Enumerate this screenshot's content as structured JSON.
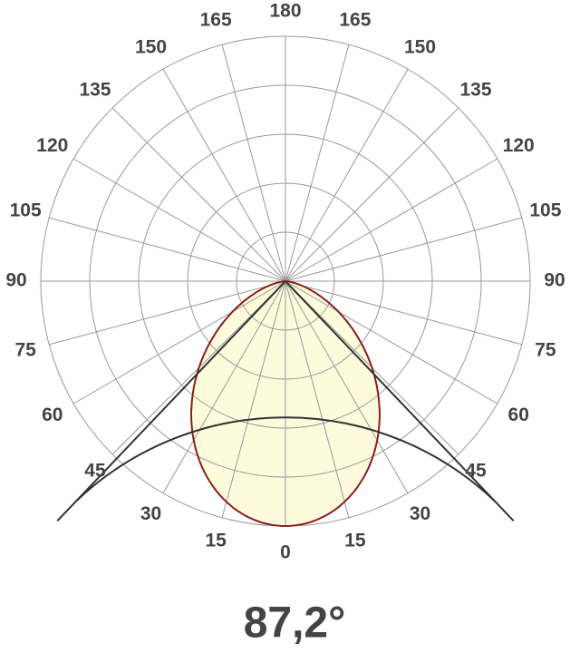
{
  "top_label": "180",
  "bottom_label": "0",
  "left_labels": [
    "15",
    "30",
    "45",
    "60",
    "75",
    "90",
    "105",
    "120",
    "135",
    "150",
    "165"
  ],
  "right_labels": [
    "15",
    "30",
    "45",
    "60",
    "75",
    "90",
    "105",
    "120",
    "135",
    "150",
    "165"
  ],
  "beam_angle": "87,2°"
}
